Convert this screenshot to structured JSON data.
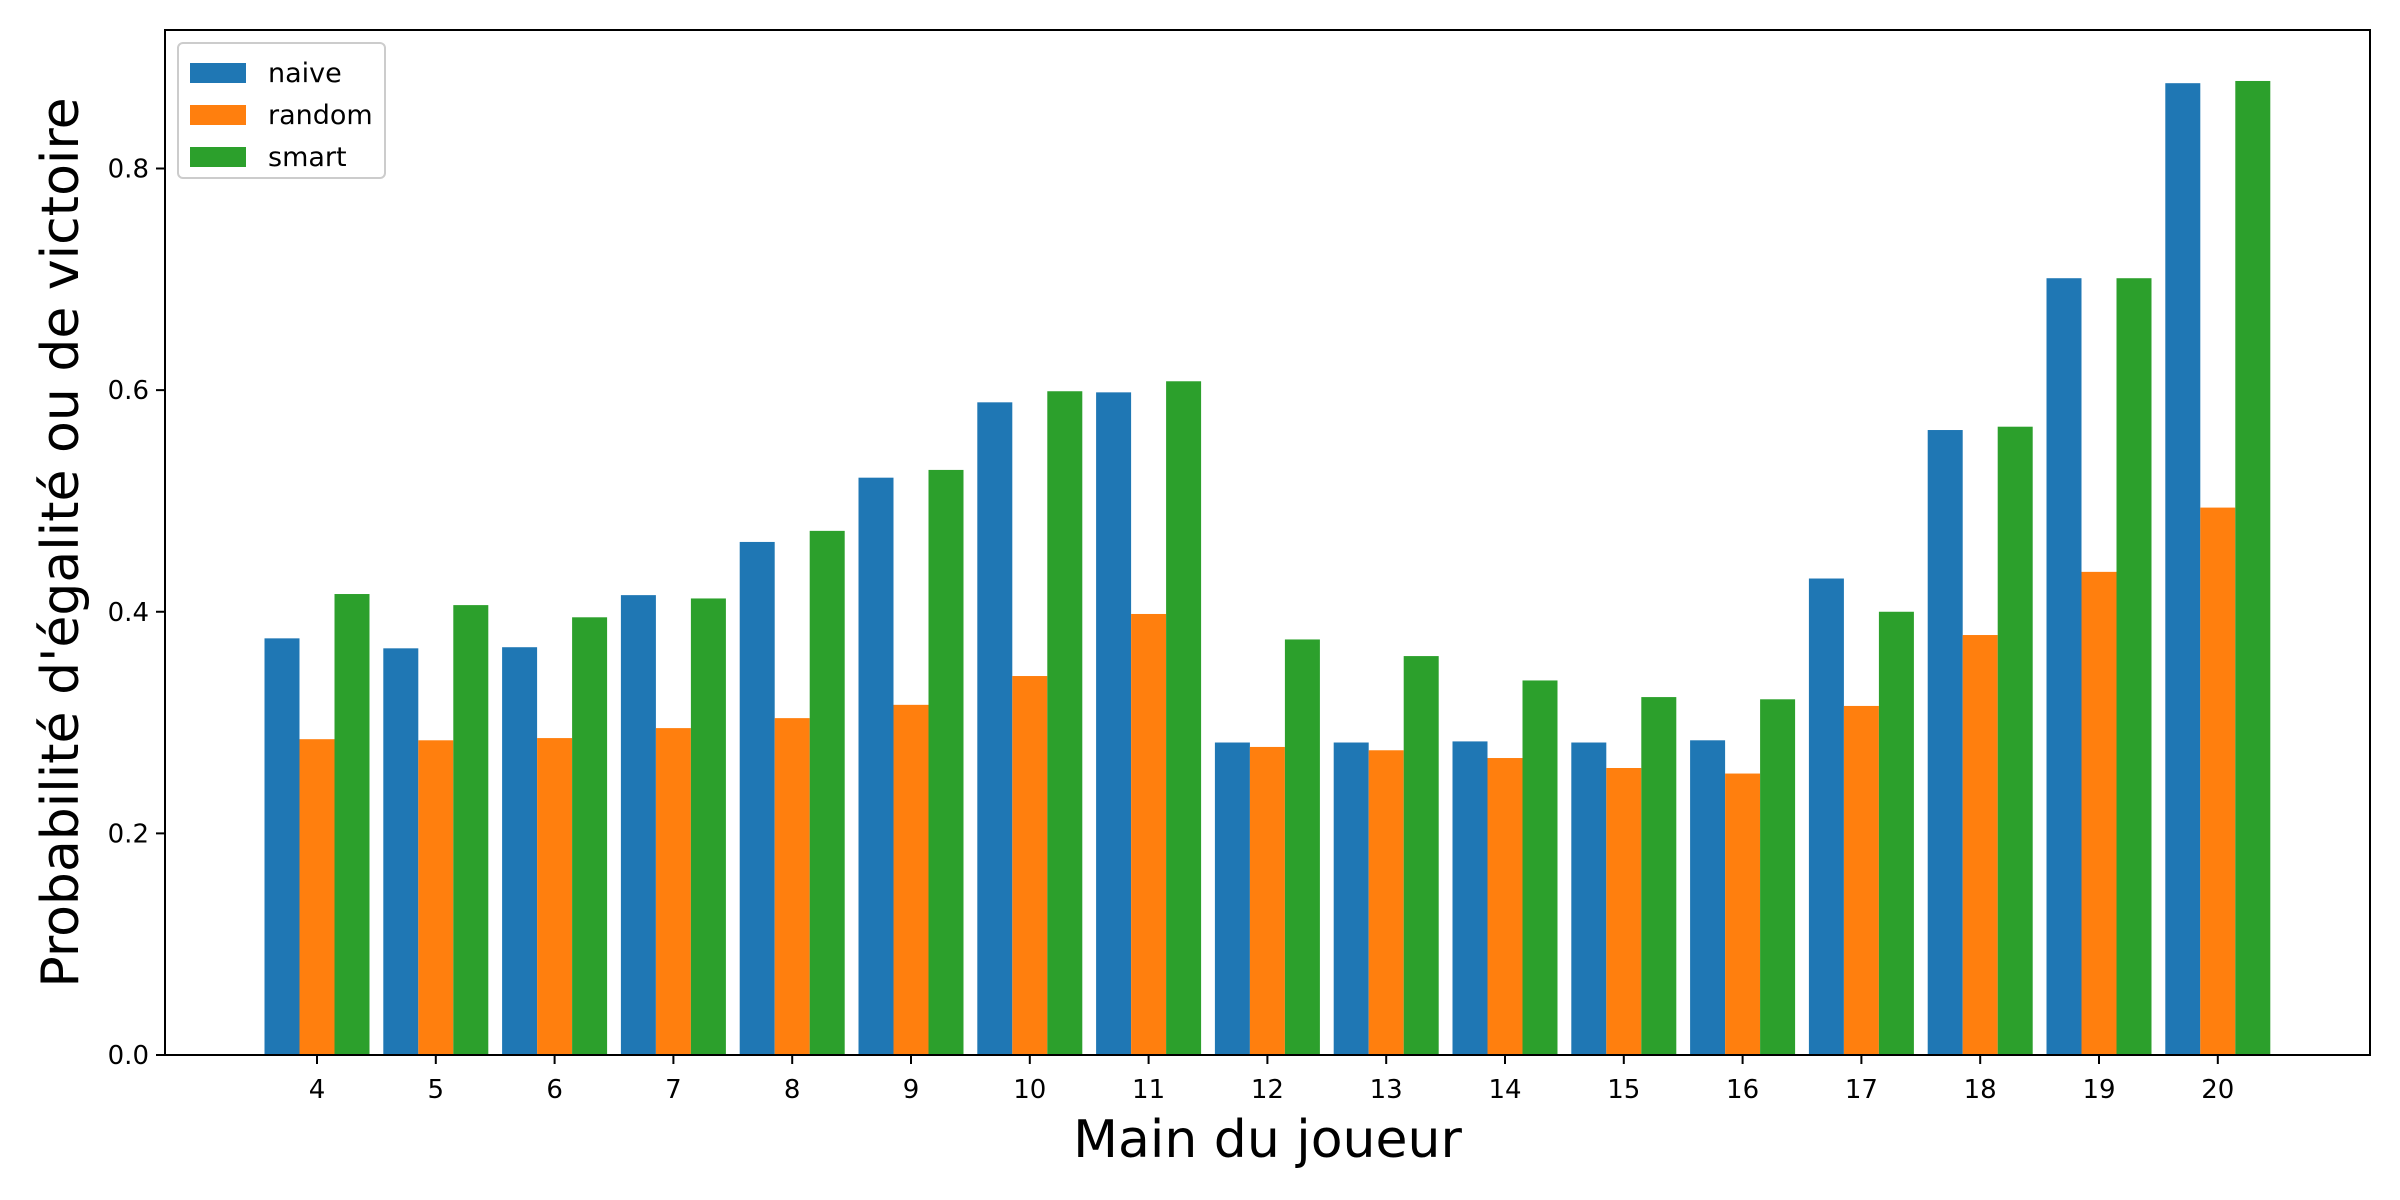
{
  "chart_data": {
    "type": "bar",
    "xlabel": "Main du joueur",
    "ylabel": "Probabilité d'égalité ou de victoire",
    "categories": [
      "4",
      "5",
      "6",
      "7",
      "8",
      "9",
      "10",
      "11",
      "12",
      "13",
      "14",
      "15",
      "16",
      "17",
      "18",
      "19",
      "20"
    ],
    "ylim": [
      0,
      0.925
    ],
    "yticks": [
      "0.0",
      "0.2",
      "0.4",
      "0.6",
      "0.8"
    ],
    "legend_position": "top-left",
    "grid": false,
    "series": [
      {
        "name": "naive",
        "color": "#1f77b4",
        "values": [
          0.376,
          0.367,
          0.368,
          0.415,
          0.463,
          0.521,
          0.589,
          0.598,
          0.282,
          0.282,
          0.283,
          0.282,
          0.284,
          0.43,
          0.564,
          0.701,
          0.877
        ]
      },
      {
        "name": "random",
        "color": "#ff7f0e",
        "values": [
          0.285,
          0.284,
          0.286,
          0.295,
          0.304,
          0.316,
          0.342,
          0.398,
          0.278,
          0.275,
          0.268,
          0.259,
          0.254,
          0.315,
          0.379,
          0.436,
          0.494
        ]
      },
      {
        "name": "smart",
        "color": "#2ca02c",
        "values": [
          0.416,
          0.406,
          0.395,
          0.412,
          0.473,
          0.528,
          0.599,
          0.608,
          0.375,
          0.36,
          0.338,
          0.323,
          0.321,
          0.4,
          0.567,
          0.701,
          0.879
        ]
      }
    ]
  }
}
